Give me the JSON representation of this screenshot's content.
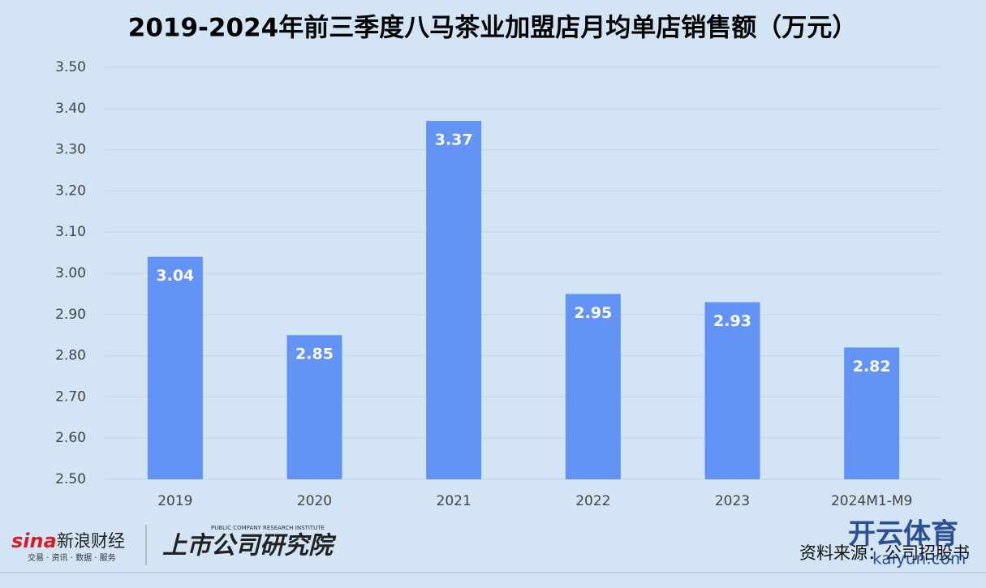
{
  "chart_data": {
    "type": "bar",
    "title": "2019-2024年前三季度八马茶业加盟店月均单店销售额（万元）",
    "categories": [
      "2019",
      "2020",
      "2021",
      "2022",
      "2023",
      "2024M1-M9"
    ],
    "values": [
      3.04,
      2.85,
      3.37,
      2.95,
      2.93,
      2.82
    ],
    "color": "#6393f5",
    "ylim": [
      2.5,
      3.5
    ],
    "yticks": [
      {
        "value": 2.5,
        "label": "2.50"
      },
      {
        "value": 2.6,
        "label": "2.60"
      },
      {
        "value": 2.7,
        "label": "2.70"
      },
      {
        "value": 2.8,
        "label": "2.80"
      },
      {
        "value": 2.9,
        "label": "2.90"
      },
      {
        "value": 3.0,
        "label": "3.00"
      },
      {
        "value": 3.1,
        "label": "3.10"
      },
      {
        "value": 3.2,
        "label": "3.20"
      },
      {
        "value": 3.3,
        "label": "3.30"
      },
      {
        "value": 3.4,
        "label": "3.40"
      },
      {
        "value": 3.5,
        "label": "3.50"
      }
    ],
    "grid": true,
    "source": "资料来源：公司招股书"
  },
  "footer": {
    "sina": "sina",
    "sina_name": "新浪财经",
    "sina_slogan": "交易 · 资讯 · 数据 · 服务",
    "institute": "上市公司研究院",
    "institute_en": "PUBLIC COMPANY RESEARCH INSTITUTE"
  },
  "watermark": {
    "brand": "开云体育",
    "site": "kaiyun.com"
  }
}
